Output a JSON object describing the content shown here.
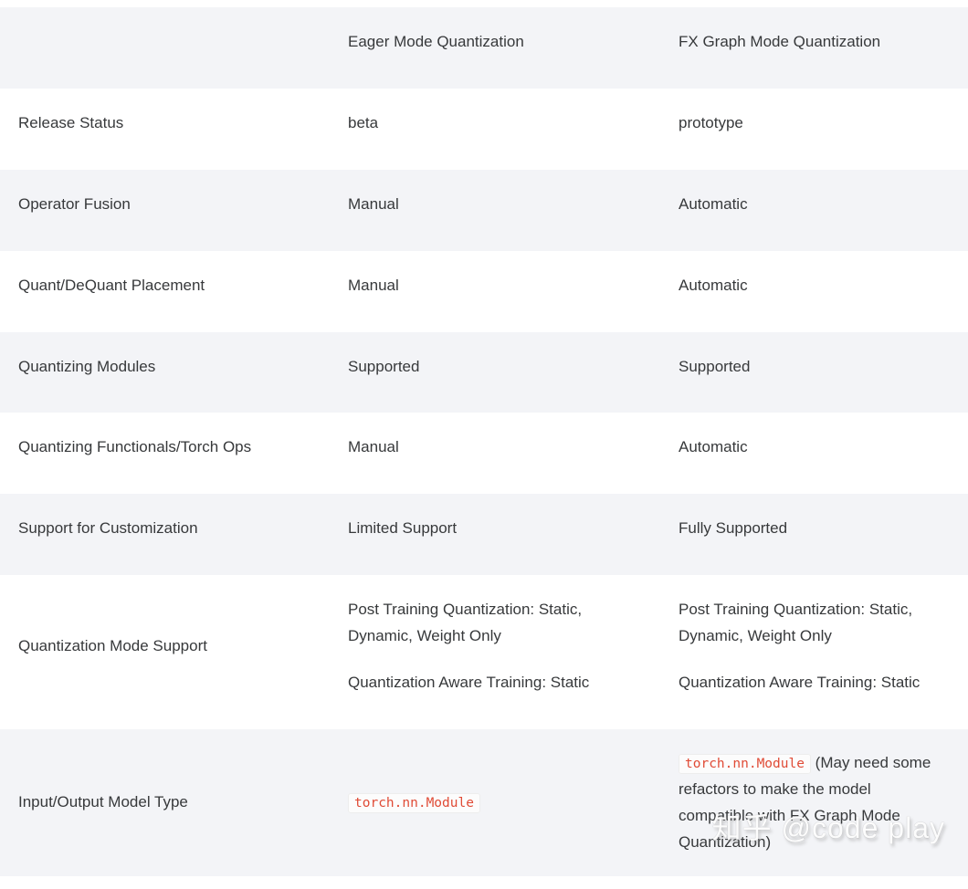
{
  "colors": {
    "stripe": "#f3f4f7",
    "text": "#37393b",
    "code_red": "#e04b36",
    "code_bg": "#fcfcfc",
    "code_border": "#ededed"
  },
  "table": {
    "columns": [
      "",
      "Eager Mode Quantization",
      "FX Graph Mode Quantization"
    ],
    "rows": [
      {
        "label": "Release Status",
        "eager": "beta",
        "fx": "prototype"
      },
      {
        "label": "Operator Fusion",
        "eager": "Manual",
        "fx": "Automatic"
      },
      {
        "label": "Quant/DeQuant Placement",
        "eager": "Manual",
        "fx": "Automatic"
      },
      {
        "label": "Quantizing Modules",
        "eager": "Supported",
        "fx": "Supported"
      },
      {
        "label": "Quantizing Functionals/Torch Ops",
        "eager": "Manual",
        "fx": "Automatic"
      },
      {
        "label": "Support for Customization",
        "eager": "Limited Support",
        "fx": "Fully Supported"
      },
      {
        "label": "Quantization Mode Support",
        "eager": {
          "paragraphs": [
            "Post Training Quantization: Static, Dynamic, Weight Only",
            "Quantization Aware Training: Static"
          ]
        },
        "fx": {
          "paragraphs": [
            "Post Training Quantization: Static, Dynamic, Weight Only",
            "Quantization Aware Training: Static"
          ]
        }
      },
      {
        "label": "Input/Output Model Type",
        "eager": {
          "code": "torch.nn.Module"
        },
        "fx": {
          "code": "torch.nn.Module",
          "suffix": " (May need some refactors to make the model compatible with FX Graph Mode Quantization)"
        }
      }
    ]
  },
  "watermark": {
    "text": "知乎 @code play"
  }
}
